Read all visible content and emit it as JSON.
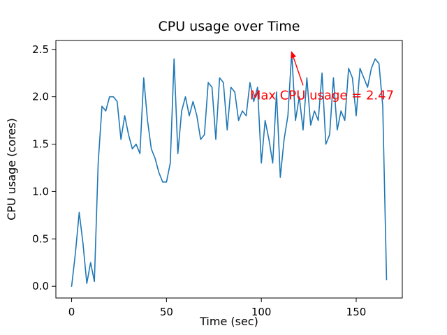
{
  "chart_data": {
    "type": "line",
    "title": "CPU usage over Time",
    "xlabel": "Time (sec)",
    "ylabel": "CPU usage (cores)",
    "line_color": "#1f77b4",
    "grid": false,
    "legend": "none",
    "xlim": [
      -8.3,
      174.3
    ],
    "ylim": [
      -0.124,
      2.594
    ],
    "xticks": [
      0,
      50,
      100,
      150
    ],
    "xtick_labels": [
      "0",
      "50",
      "100",
      "150"
    ],
    "yticks": [
      0.0,
      0.5,
      1.0,
      1.5,
      2.0,
      2.5
    ],
    "ytick_labels": [
      "0.0",
      "0.5",
      "1.0",
      "1.5",
      "2.0",
      "2.5"
    ],
    "x": [
      0,
      2,
      4,
      6,
      8,
      10,
      12,
      14,
      16,
      18,
      20,
      22,
      24,
      26,
      28,
      30,
      32,
      34,
      36,
      38,
      40,
      42,
      44,
      46,
      48,
      50,
      52,
      54,
      56,
      58,
      60,
      62,
      64,
      66,
      68,
      70,
      72,
      74,
      76,
      78,
      80,
      82,
      84,
      86,
      88,
      90,
      92,
      94,
      96,
      98,
      100,
      102,
      104,
      106,
      108,
      110,
      112,
      114,
      116,
      118,
      120,
      122,
      124,
      126,
      128,
      130,
      132,
      134,
      136,
      138,
      140,
      142,
      144,
      146,
      148,
      150,
      152,
      154,
      156,
      158,
      160,
      162,
      164,
      166
    ],
    "values": [
      0.0,
      0.35,
      0.78,
      0.45,
      0.03,
      0.25,
      0.05,
      1.3,
      1.9,
      1.85,
      2.0,
      2.0,
      1.95,
      1.55,
      1.8,
      1.6,
      1.45,
      1.5,
      1.4,
      2.2,
      1.75,
      1.45,
      1.35,
      1.2,
      1.1,
      1.1,
      1.3,
      2.4,
      1.4,
      1.85,
      2.0,
      1.8,
      1.95,
      1.8,
      1.55,
      1.6,
      2.15,
      2.1,
      1.55,
      2.2,
      2.15,
      1.65,
      2.1,
      2.05,
      1.75,
      1.85,
      1.8,
      2.15,
      1.95,
      2.1,
      1.3,
      1.75,
      1.55,
      1.3,
      2.05,
      1.15,
      1.55,
      1.8,
      2.47,
      1.75,
      2.0,
      1.65,
      2.2,
      1.7,
      1.85,
      1.75,
      2.25,
      1.5,
      1.6,
      2.2,
      1.65,
      1.85,
      1.75,
      2.3,
      2.2,
      1.8,
      2.3,
      2.2,
      2.1,
      2.3,
      2.4,
      2.35,
      1.9,
      0.07
    ],
    "annotation": {
      "text": "Max CPU usage = 2.47",
      "color": "#ff0000",
      "xy": [
        116,
        2.47
      ],
      "text_xy": [
        94,
        1.97
      ],
      "arrow_from": [
        122,
        2.12
      ]
    }
  }
}
